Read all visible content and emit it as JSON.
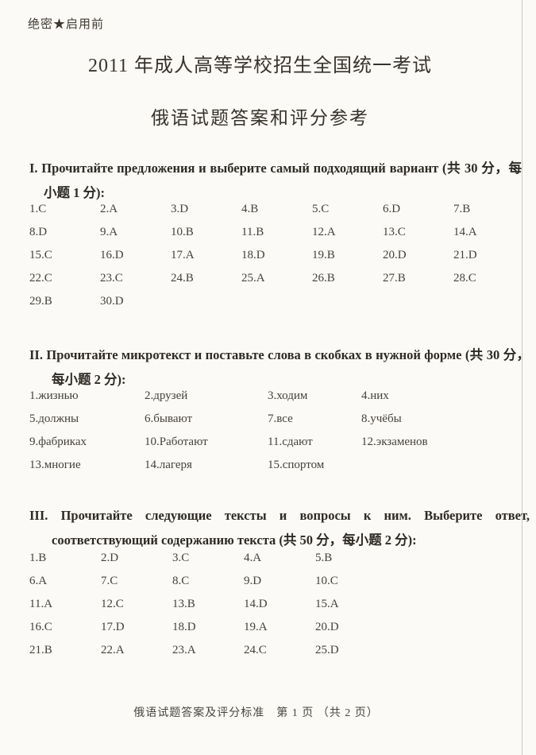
{
  "page": {
    "classification": "绝密★启用前",
    "title": "2011 年成人高等学校招生全国统一考试",
    "subtitle": "俄语试题答案和评分参考",
    "footer": "俄语试题答案及评分标准　第 1 页 （共 2 页）"
  },
  "sections": [
    {
      "numeral": "I",
      "heading": "I. Прочитайте предложения и выберите самый подходящий вариант (共 30 分，每小题 1 分):",
      "points_total": 30,
      "points_each": 1,
      "answers": [
        "1.C",
        "2.A",
        "3.D",
        "4.B",
        "5.C",
        "6.D",
        "7.B",
        "8.D",
        "9.A",
        "10.B",
        "11.B",
        "12.A",
        "13.C",
        "14.A",
        "15.C",
        "16.D",
        "17.A",
        "18.D",
        "19.B",
        "20.D",
        "21.D",
        "22.C",
        "23.C",
        "24.B",
        "25.A",
        "26.B",
        "27.B",
        "28.C",
        "29.B",
        "30.D"
      ]
    },
    {
      "numeral": "II",
      "heading": "II. Прочитайте микротекст и поставьте слова в скобках в нужной форме (共 30 分，每小题 2 分):",
      "points_total": 30,
      "points_each": 2,
      "answers": [
        "1.жизнью",
        "2.друзей",
        "3.ходим",
        "4.них",
        "5.должны",
        "6.бывают",
        "7.все",
        "8.учёбы",
        "9.фабриках",
        "10.Работают",
        "11.сдают",
        "12.экзаменов",
        "13.многие",
        "14.лагеря",
        "15.спортом"
      ]
    },
    {
      "numeral": "III",
      "heading": "III. Прочитайте следующие тексты и вопросы к ним. Выберите ответ, соответствующий содержанию текста (共 50 分，每小题 2 分):",
      "points_total": 50,
      "points_each": 2,
      "answers": [
        "1.B",
        "2.D",
        "3.C",
        "4.A",
        "5.B",
        "6.A",
        "7.C",
        "8.C",
        "9.D",
        "10.C",
        "11.A",
        "12.C",
        "13.B",
        "14.D",
        "15.A",
        "16.C",
        "17.D",
        "18.D",
        "19.A",
        "20.D",
        "21.B",
        "22.A",
        "23.A",
        "24.C",
        "25.D"
      ]
    }
  ]
}
